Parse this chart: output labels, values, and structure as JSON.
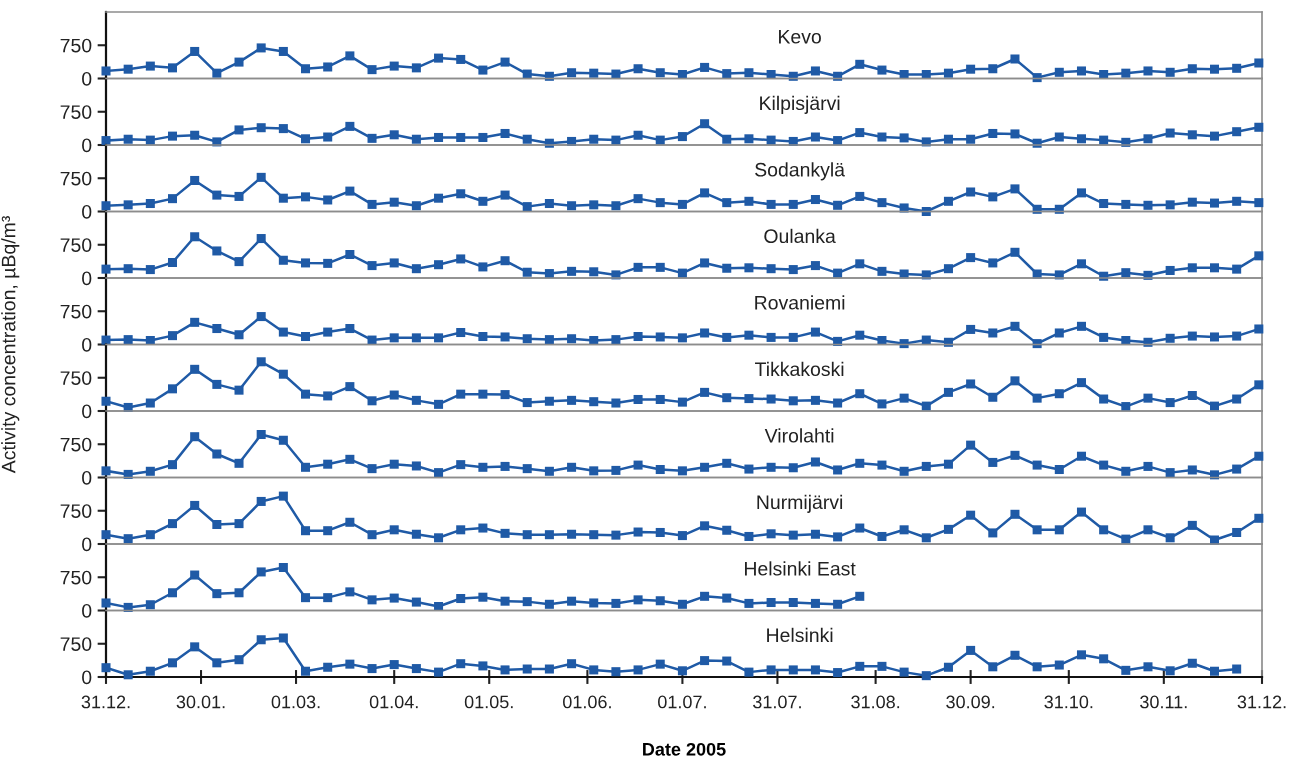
{
  "chart_data": [
    {
      "type": "line",
      "title": "Kevo",
      "marker": "square",
      "tick_labels": "y",
      "x": [
        "2004-12-31",
        "2005-01-07",
        "2005-01-14",
        "2005-01-21",
        "2005-01-28",
        "2005-02-04",
        "2005-02-11",
        "2005-02-18",
        "2005-02-25",
        "2005-03-04",
        "2005-03-11",
        "2005-03-18",
        "2005-03-25",
        "2005-04-01",
        "2005-04-08",
        "2005-04-15",
        "2005-04-22",
        "2005-04-29",
        "2005-05-06",
        "2005-05-13",
        "2005-05-20",
        "2005-05-27",
        "2005-06-03",
        "2005-06-10",
        "2005-06-17",
        "2005-06-24",
        "2005-07-01",
        "2005-07-08",
        "2005-07-15",
        "2005-07-22",
        "2005-07-29",
        "2005-08-05",
        "2005-08-12",
        "2005-08-19",
        "2005-08-26",
        "2005-09-02",
        "2005-09-09",
        "2005-09-16",
        "2005-09-23",
        "2005-09-30",
        "2005-10-07",
        "2005-10-14",
        "2005-10-21",
        "2005-10-28",
        "2005-11-04",
        "2005-11-11",
        "2005-11-18",
        "2005-11-25",
        "2005-12-02",
        "2005-12-09",
        "2005-12-16",
        "2005-12-23",
        "2005-12-30"
      ],
      "xlim": [
        "2004-12-31",
        "2005-12-31"
      ],
      "ylim": [
        0,
        1500
      ],
      "yticks": [
        0,
        750
      ],
      "series": [
        {
          "color": "#1f5aa6",
          "values": [
            170,
            210,
            280,
            240,
            610,
            120,
            370,
            690,
            610,
            220,
            260,
            510,
            200,
            280,
            240,
            460,
            430,
            190,
            370,
            100,
            50,
            130,
            120,
            100,
            220,
            130,
            90,
            250,
            110,
            130,
            90,
            50,
            170,
            50,
            320,
            190,
            90,
            90,
            120,
            210,
            220,
            440,
            20,
            140,
            170,
            90,
            120,
            170,
            140,
            220,
            210,
            230,
            350
          ]
        }
      ]
    },
    {
      "type": "line",
      "title": "Kilpisjärvi",
      "marker": "square",
      "tick_labels": "y",
      "x": [
        "2004-12-31",
        "2005-01-07",
        "2005-01-14",
        "2005-01-21",
        "2005-01-28",
        "2005-02-04",
        "2005-02-11",
        "2005-02-18",
        "2005-02-25",
        "2005-03-04",
        "2005-03-11",
        "2005-03-18",
        "2005-03-25",
        "2005-04-01",
        "2005-04-08",
        "2005-04-15",
        "2005-04-22",
        "2005-04-29",
        "2005-05-06",
        "2005-05-13",
        "2005-05-20",
        "2005-05-27",
        "2005-06-03",
        "2005-06-10",
        "2005-06-17",
        "2005-06-24",
        "2005-07-01",
        "2005-07-08",
        "2005-07-15",
        "2005-07-22",
        "2005-07-29",
        "2005-08-05",
        "2005-08-12",
        "2005-08-19",
        "2005-08-26",
        "2005-09-02",
        "2005-09-09",
        "2005-09-16",
        "2005-09-23",
        "2005-09-30",
        "2005-10-07",
        "2005-10-14",
        "2005-10-21",
        "2005-10-28",
        "2005-11-04",
        "2005-11-11",
        "2005-11-18",
        "2005-11-25",
        "2005-12-02",
        "2005-12-09",
        "2005-12-16",
        "2005-12-23",
        "2005-12-30"
      ],
      "xlim": [
        "2004-12-31",
        "2005-12-31"
      ],
      "ylim": [
        0,
        1500
      ],
      "yticks": [
        0,
        750
      ],
      "series": [
        {
          "color": "#1f5aa6",
          "values": [
            100,
            130,
            110,
            200,
            220,
            70,
            340,
            390,
            370,
            140,
            180,
            420,
            150,
            230,
            130,
            170,
            170,
            170,
            260,
            130,
            40,
            80,
            130,
            110,
            220,
            110,
            190,
            480,
            130,
            140,
            110,
            80,
            180,
            100,
            280,
            180,
            160,
            70,
            130,
            130,
            260,
            250,
            40,
            180,
            140,
            110,
            60,
            140,
            270,
            230,
            200,
            300,
            400
          ]
        }
      ]
    },
    {
      "type": "line",
      "title": "Sodankylä",
      "marker": "square",
      "tick_labels": "y",
      "x": [
        "2004-12-31",
        "2005-01-07",
        "2005-01-14",
        "2005-01-21",
        "2005-01-28",
        "2005-02-04",
        "2005-02-11",
        "2005-02-18",
        "2005-02-25",
        "2005-03-04",
        "2005-03-11",
        "2005-03-18",
        "2005-03-25",
        "2005-04-01",
        "2005-04-08",
        "2005-04-15",
        "2005-04-22",
        "2005-04-29",
        "2005-05-06",
        "2005-05-13",
        "2005-05-20",
        "2005-05-27",
        "2005-06-03",
        "2005-06-10",
        "2005-06-17",
        "2005-06-24",
        "2005-07-01",
        "2005-07-08",
        "2005-07-15",
        "2005-07-22",
        "2005-07-29",
        "2005-08-05",
        "2005-08-12",
        "2005-08-19",
        "2005-08-26",
        "2005-09-02",
        "2005-09-09",
        "2005-09-16",
        "2005-09-23",
        "2005-09-30",
        "2005-10-07",
        "2005-10-14",
        "2005-10-21",
        "2005-10-28",
        "2005-11-04",
        "2005-11-11",
        "2005-11-18",
        "2005-11-25",
        "2005-12-02",
        "2005-12-09",
        "2005-12-16",
        "2005-12-23",
        "2005-12-30"
      ],
      "xlim": [
        "2004-12-31",
        "2005-12-31"
      ],
      "ylim": [
        0,
        1500
      ],
      "yticks": [
        0,
        750
      ],
      "series": [
        {
          "color": "#1f5aa6",
          "values": [
            130,
            150,
            180,
            290,
            700,
            370,
            340,
            770,
            300,
            330,
            260,
            460,
            160,
            210,
            130,
            300,
            400,
            230,
            370,
            110,
            180,
            130,
            150,
            130,
            290,
            200,
            160,
            420,
            200,
            230,
            160,
            160,
            270,
            140,
            340,
            200,
            80,
            0,
            230,
            440,
            330,
            510,
            50,
            50,
            420,
            180,
            160,
            140,
            150,
            210,
            190,
            230,
            200
          ]
        }
      ]
    },
    {
      "type": "line",
      "title": "Oulanka",
      "marker": "square",
      "tick_labels": "y",
      "x": [
        "2004-12-31",
        "2005-01-07",
        "2005-01-14",
        "2005-01-21",
        "2005-01-28",
        "2005-02-04",
        "2005-02-11",
        "2005-02-18",
        "2005-02-25",
        "2005-03-04",
        "2005-03-11",
        "2005-03-18",
        "2005-03-25",
        "2005-04-01",
        "2005-04-08",
        "2005-04-15",
        "2005-04-22",
        "2005-04-29",
        "2005-05-06",
        "2005-05-13",
        "2005-05-20",
        "2005-05-27",
        "2005-06-03",
        "2005-06-10",
        "2005-06-17",
        "2005-06-24",
        "2005-07-01",
        "2005-07-08",
        "2005-07-15",
        "2005-07-22",
        "2005-07-29",
        "2005-08-05",
        "2005-08-12",
        "2005-08-19",
        "2005-08-26",
        "2005-09-02",
        "2005-09-09",
        "2005-09-16",
        "2005-09-23",
        "2005-09-30",
        "2005-10-07",
        "2005-10-14",
        "2005-10-21",
        "2005-10-28",
        "2005-11-04",
        "2005-11-11",
        "2005-11-18",
        "2005-11-25",
        "2005-12-02",
        "2005-12-09",
        "2005-12-16",
        "2005-12-23",
        "2005-12-30"
      ],
      "xlim": [
        "2004-12-31",
        "2005-12-31"
      ],
      "ylim": [
        0,
        1500
      ],
      "yticks": [
        0,
        750
      ],
      "series": [
        {
          "color": "#1f5aa6",
          "values": [
            200,
            210,
            190,
            350,
            930,
            610,
            370,
            890,
            400,
            340,
            330,
            530,
            280,
            340,
            210,
            300,
            430,
            250,
            390,
            130,
            100,
            150,
            140,
            70,
            240,
            240,
            110,
            340,
            220,
            230,
            210,
            190,
            280,
            110,
            320,
            150,
            90,
            70,
            210,
            460,
            340,
            580,
            90,
            70,
            320,
            40,
            120,
            60,
            170,
            230,
            230,
            200,
            500
          ]
        }
      ]
    },
    {
      "type": "line",
      "title": "Rovaniemi",
      "ylabel": "Activity concentration, µBq/m³",
      "marker": "square",
      "tick_labels": "y",
      "x": [
        "2004-12-31",
        "2005-01-07",
        "2005-01-14",
        "2005-01-21",
        "2005-01-28",
        "2005-02-04",
        "2005-02-11",
        "2005-02-18",
        "2005-02-25",
        "2005-03-04",
        "2005-03-11",
        "2005-03-18",
        "2005-03-25",
        "2005-04-01",
        "2005-04-08",
        "2005-04-15",
        "2005-04-22",
        "2005-04-29",
        "2005-05-06",
        "2005-05-13",
        "2005-05-20",
        "2005-05-27",
        "2005-06-03",
        "2005-06-10",
        "2005-06-17",
        "2005-06-24",
        "2005-07-01",
        "2005-07-08",
        "2005-07-15",
        "2005-07-22",
        "2005-07-29",
        "2005-08-05",
        "2005-08-12",
        "2005-08-19",
        "2005-08-26",
        "2005-09-02",
        "2005-09-09",
        "2005-09-16",
        "2005-09-23",
        "2005-09-30",
        "2005-10-07",
        "2005-10-14",
        "2005-10-21",
        "2005-10-28",
        "2005-11-04",
        "2005-11-11",
        "2005-11-18",
        "2005-11-25",
        "2005-12-02",
        "2005-12-09",
        "2005-12-16",
        "2005-12-23",
        "2005-12-30"
      ],
      "xlim": [
        "2004-12-31",
        "2005-12-31"
      ],
      "ylim": [
        0,
        1500
      ],
      "yticks": [
        0,
        750
      ],
      "series": [
        {
          "color": "#1f5aa6",
          "values": [
            100,
            110,
            90,
            200,
            500,
            360,
            220,
            630,
            280,
            180,
            280,
            360,
            100,
            150,
            150,
            150,
            270,
            180,
            170,
            130,
            110,
            130,
            90,
            110,
            180,
            170,
            150,
            260,
            160,
            210,
            160,
            160,
            280,
            70,
            210,
            90,
            20,
            100,
            50,
            340,
            260,
            410,
            20,
            260,
            410,
            160,
            90,
            50,
            140,
            190,
            170,
            190,
            350
          ]
        }
      ]
    },
    {
      "type": "line",
      "title": "Tikkakoski",
      "marker": "square",
      "tick_labels": "y",
      "x": [
        "2004-12-31",
        "2005-01-07",
        "2005-01-14",
        "2005-01-21",
        "2005-01-28",
        "2005-02-04",
        "2005-02-11",
        "2005-02-18",
        "2005-02-25",
        "2005-03-04",
        "2005-03-11",
        "2005-03-18",
        "2005-03-25",
        "2005-04-01",
        "2005-04-08",
        "2005-04-15",
        "2005-04-22",
        "2005-04-29",
        "2005-05-06",
        "2005-05-13",
        "2005-05-20",
        "2005-05-27",
        "2005-06-03",
        "2005-06-10",
        "2005-06-17",
        "2005-06-24",
        "2005-07-01",
        "2005-07-08",
        "2005-07-15",
        "2005-07-22",
        "2005-07-29",
        "2005-08-05",
        "2005-08-12",
        "2005-08-19",
        "2005-08-26",
        "2005-09-02",
        "2005-09-09",
        "2005-09-16",
        "2005-09-23",
        "2005-09-30",
        "2005-10-07",
        "2005-10-14",
        "2005-10-21",
        "2005-10-28",
        "2005-11-04",
        "2005-11-11",
        "2005-11-18",
        "2005-11-25",
        "2005-12-02",
        "2005-12-09",
        "2005-12-16",
        "2005-12-23",
        "2005-12-30"
      ],
      "xlim": [
        "2004-12-31",
        "2005-12-31"
      ],
      "ylim": [
        0,
        1500
      ],
      "yticks": [
        0,
        750
      ],
      "series": [
        {
          "color": "#1f5aa6",
          "values": [
            220,
            80,
            180,
            500,
            940,
            600,
            470,
            1110,
            830,
            380,
            340,
            550,
            230,
            360,
            240,
            150,
            380,
            380,
            370,
            190,
            220,
            240,
            210,
            180,
            260,
            260,
            200,
            420,
            300,
            280,
            270,
            230,
            240,
            180,
            390,
            160,
            290,
            110,
            420,
            610,
            310,
            680,
            290,
            390,
            640,
            270,
            100,
            290,
            190,
            350,
            110,
            270,
            590
          ]
        }
      ]
    },
    {
      "type": "line",
      "title": "Virolahti",
      "marker": "square",
      "tick_labels": "y",
      "x": [
        "2004-12-31",
        "2005-01-07",
        "2005-01-14",
        "2005-01-21",
        "2005-01-28",
        "2005-02-04",
        "2005-02-11",
        "2005-02-18",
        "2005-02-25",
        "2005-03-04",
        "2005-03-11",
        "2005-03-18",
        "2005-03-25",
        "2005-04-01",
        "2005-04-08",
        "2005-04-15",
        "2005-04-22",
        "2005-04-29",
        "2005-05-06",
        "2005-05-13",
        "2005-05-20",
        "2005-05-27",
        "2005-06-03",
        "2005-06-10",
        "2005-06-17",
        "2005-06-24",
        "2005-07-01",
        "2005-07-08",
        "2005-07-15",
        "2005-07-22",
        "2005-07-29",
        "2005-08-05",
        "2005-08-12",
        "2005-08-19",
        "2005-08-26",
        "2005-09-02",
        "2005-09-09",
        "2005-09-16",
        "2005-09-23",
        "2005-09-30",
        "2005-10-07",
        "2005-10-14",
        "2005-10-21",
        "2005-10-28",
        "2005-11-04",
        "2005-11-11",
        "2005-11-18",
        "2005-11-25",
        "2005-12-02",
        "2005-12-09",
        "2005-12-16",
        "2005-12-23",
        "2005-12-30"
      ],
      "xlim": [
        "2004-12-31",
        "2005-12-31"
      ],
      "ylim": [
        0,
        1500
      ],
      "yticks": [
        0,
        750
      ],
      "series": [
        {
          "color": "#1f5aa6",
          "values": [
            150,
            70,
            140,
            290,
            920,
            530,
            320,
            970,
            840,
            230,
            300,
            410,
            200,
            300,
            260,
            110,
            290,
            230,
            250,
            200,
            140,
            230,
            150,
            160,
            280,
            180,
            150,
            230,
            320,
            190,
            230,
            220,
            350,
            170,
            320,
            280,
            140,
            250,
            300,
            730,
            340,
            500,
            280,
            180,
            480,
            280,
            140,
            250,
            110,
            170,
            60,
            190,
            480
          ]
        }
      ]
    },
    {
      "type": "line",
      "title": "Nurmijärvi",
      "marker": "square",
      "tick_labels": "y",
      "x": [
        "2004-12-31",
        "2005-01-07",
        "2005-01-14",
        "2005-01-21",
        "2005-01-28",
        "2005-02-04",
        "2005-02-11",
        "2005-02-18",
        "2005-02-25",
        "2005-03-04",
        "2005-03-11",
        "2005-03-18",
        "2005-03-25",
        "2005-04-01",
        "2005-04-08",
        "2005-04-15",
        "2005-04-22",
        "2005-04-29",
        "2005-05-06",
        "2005-05-13",
        "2005-05-20",
        "2005-05-27",
        "2005-06-03",
        "2005-06-10",
        "2005-06-17",
        "2005-06-24",
        "2005-07-01",
        "2005-07-08",
        "2005-07-15",
        "2005-07-22",
        "2005-07-29",
        "2005-08-05",
        "2005-08-12",
        "2005-08-19",
        "2005-08-26",
        "2005-09-02",
        "2005-09-09",
        "2005-09-16",
        "2005-09-23",
        "2005-09-30",
        "2005-10-07",
        "2005-10-14",
        "2005-10-21",
        "2005-10-28",
        "2005-11-04",
        "2005-11-11",
        "2005-11-18",
        "2005-11-25",
        "2005-12-02",
        "2005-12-09",
        "2005-12-16",
        "2005-12-23",
        "2005-12-30"
      ],
      "xlim": [
        "2004-12-31",
        "2005-12-31"
      ],
      "ylim": [
        0,
        1500
      ],
      "yticks": [
        0,
        750
      ],
      "series": [
        {
          "color": "#1f5aa6",
          "values": [
            210,
            120,
            210,
            460,
            870,
            440,
            460,
            960,
            1080,
            300,
            300,
            490,
            210,
            320,
            220,
            140,
            320,
            360,
            240,
            210,
            210,
            220,
            210,
            200,
            270,
            260,
            190,
            410,
            310,
            170,
            230,
            200,
            220,
            160,
            360,
            170,
            320,
            140,
            330,
            650,
            250,
            670,
            320,
            320,
            720,
            320,
            110,
            320,
            140,
            420,
            90,
            260,
            580
          ]
        }
      ]
    },
    {
      "type": "line",
      "title": "Helsinki East",
      "marker": "square",
      "tick_labels": "y",
      "xlim": [
        "2004-12-31",
        "2005-12-31"
      ],
      "ylim": [
        0,
        1500
      ],
      "yticks": [
        0,
        750
      ],
      "series": [
        {
          "color": "#1f5aa6",
          "x": [
            "2004-12-31",
            "2005-01-07",
            "2005-01-14",
            "2005-01-21",
            "2005-01-28",
            "2005-02-04",
            "2005-02-11",
            "2005-02-18",
            "2005-02-25",
            "2005-03-04",
            "2005-03-11",
            "2005-03-18",
            "2005-03-25",
            "2005-04-01",
            "2005-04-08",
            "2005-04-15",
            "2005-04-22",
            "2005-04-29",
            "2005-05-06",
            "2005-05-13",
            "2005-05-20",
            "2005-05-27",
            "2005-06-03",
            "2005-06-10",
            "2005-06-17",
            "2005-06-24",
            "2005-07-01",
            "2005-07-08",
            "2005-07-15",
            "2005-07-22",
            "2005-07-29",
            "2005-08-05",
            "2005-08-12",
            "2005-08-19",
            "2005-08-26"
          ],
          "values": [
            170,
            70,
            130,
            400,
            800,
            380,
            400,
            870,
            970,
            290,
            290,
            420,
            240,
            280,
            190,
            90,
            270,
            300,
            210,
            200,
            140,
            210,
            170,
            160,
            240,
            220,
            140,
            320,
            280,
            160,
            180,
            180,
            160,
            140,
            320
          ]
        }
      ]
    },
    {
      "type": "line",
      "title": "Helsinki",
      "xlabel": "Date 2005",
      "marker": "square",
      "xlim": [
        "2004-12-31",
        "2005-12-31"
      ],
      "ylim": [
        0,
        1500
      ],
      "yticks": [
        0,
        750
      ],
      "xticks": [
        {
          "value": "2004-12-31",
          "label": "31.12."
        },
        {
          "value": "2005-01-30",
          "label": "30.01."
        },
        {
          "value": "2005-03-01",
          "label": "01.03."
        },
        {
          "value": "2005-04-01",
          "label": "01.04."
        },
        {
          "value": "2005-05-01",
          "label": "01.05."
        },
        {
          "value": "2005-06-01",
          "label": "01.06."
        },
        {
          "value": "2005-07-01",
          "label": "01.07."
        },
        {
          "value": "2005-07-31",
          "label": "31.07."
        },
        {
          "value": "2005-08-31",
          "label": "31.08."
        },
        {
          "value": "2005-09-30",
          "label": "30.09."
        },
        {
          "value": "2005-10-31",
          "label": "31.10."
        },
        {
          "value": "2005-11-30",
          "label": "30.11."
        },
        {
          "value": "2005-12-31",
          "label": "31.12."
        }
      ],
      "series": [
        {
          "color": "#1f5aa6",
          "x": [
            "2004-12-31",
            "2005-01-07",
            "2005-01-14",
            "2005-01-21",
            "2005-01-28",
            "2005-02-04",
            "2005-02-11",
            "2005-02-18",
            "2005-02-25",
            "2005-03-04",
            "2005-03-11",
            "2005-03-18",
            "2005-03-25",
            "2005-04-01",
            "2005-04-08",
            "2005-04-15",
            "2005-04-22",
            "2005-04-29",
            "2005-05-06",
            "2005-05-13",
            "2005-05-20",
            "2005-05-27",
            "2005-06-03",
            "2005-06-10",
            "2005-06-17",
            "2005-06-24",
            "2005-07-01",
            "2005-07-08",
            "2005-07-15",
            "2005-07-22",
            "2005-07-29",
            "2005-08-05",
            "2005-08-12",
            "2005-08-19",
            "2005-08-26",
            "2005-09-02",
            "2005-09-09",
            "2005-09-16",
            "2005-09-23",
            "2005-09-30",
            "2005-10-07",
            "2005-10-14",
            "2005-10-21",
            "2005-10-28",
            "2005-11-04",
            "2005-11-11",
            "2005-11-18",
            "2005-11-25",
            "2005-12-02",
            "2005-12-09",
            "2005-12-16",
            "2005-12-23"
          ],
          "values": [
            210,
            50,
            130,
            320,
            680,
            320,
            390,
            840,
            880,
            130,
            220,
            290,
            190,
            280,
            190,
            110,
            300,
            250,
            160,
            180,
            180,
            300,
            160,
            120,
            160,
            290,
            140,
            370,
            360,
            110,
            160,
            160,
            160,
            100,
            240,
            240,
            110,
            30,
            220,
            600,
            230,
            490,
            230,
            270,
            500,
            410,
            150,
            230,
            140,
            310,
            130,
            180
          ]
        }
      ]
    }
  ]
}
